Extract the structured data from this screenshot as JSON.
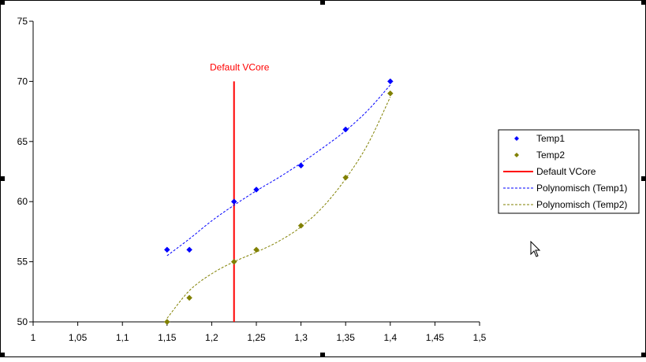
{
  "chart_data": {
    "type": "scatter",
    "title": "",
    "xlabel": "",
    "ylabel": "",
    "xlim": [
      1,
      1.5
    ],
    "ylim": [
      50,
      75
    ],
    "x_ticks": [
      1,
      1.05,
      1.1,
      1.15,
      1.2,
      1.25,
      1.3,
      1.35,
      1.4,
      1.45,
      1.5
    ],
    "x_tick_labels": [
      "1",
      "1,05",
      "1,1",
      "1,15",
      "1,2",
      "1,25",
      "1,3",
      "1,35",
      "1,4",
      "1,45",
      "1,5"
    ],
    "y_ticks": [
      50,
      55,
      60,
      65,
      70,
      75
    ],
    "y_tick_labels": [
      "50",
      "55",
      "60",
      "65",
      "70",
      "75"
    ],
    "grid": false,
    "legend_position": "right",
    "series": [
      {
        "name": "Temp1",
        "color": "#0000ff",
        "marker": "diamond",
        "points": [
          {
            "x": 1.15,
            "y": 56
          },
          {
            "x": 1.175,
            "y": 56
          },
          {
            "x": 1.225,
            "y": 60
          },
          {
            "x": 1.25,
            "y": 61
          },
          {
            "x": 1.3,
            "y": 63
          },
          {
            "x": 1.35,
            "y": 66
          },
          {
            "x": 1.4,
            "y": 70
          }
        ]
      },
      {
        "name": "Temp2",
        "color": "#808000",
        "marker": "diamond",
        "points": [
          {
            "x": 1.15,
            "y": 50
          },
          {
            "x": 1.175,
            "y": 52
          },
          {
            "x": 1.225,
            "y": 55
          },
          {
            "x": 1.25,
            "y": 56
          },
          {
            "x": 1.3,
            "y": 58
          },
          {
            "x": 1.35,
            "y": 62
          },
          {
            "x": 1.4,
            "y": 69
          }
        ]
      }
    ],
    "reference_line": {
      "name": "Default VCore",
      "label": "Default VCore",
      "color": "#ff0000",
      "x": 1.225,
      "y_from": 50,
      "y_to": 70
    },
    "trendlines": [
      {
        "name": "Polynomisch (Temp1)",
        "color": "#0000ff",
        "dash": "dashed",
        "points": [
          {
            "x": 1.15,
            "y": 55.5
          },
          {
            "x": 1.175,
            "y": 56.9
          },
          {
            "x": 1.2,
            "y": 58.4
          },
          {
            "x": 1.225,
            "y": 59.7
          },
          {
            "x": 1.25,
            "y": 60.9
          },
          {
            "x": 1.275,
            "y": 62
          },
          {
            "x": 1.3,
            "y": 63.2
          },
          {
            "x": 1.325,
            "y": 64.5
          },
          {
            "x": 1.35,
            "y": 65.9
          },
          {
            "x": 1.375,
            "y": 67.6
          },
          {
            "x": 1.4,
            "y": 69.7
          }
        ]
      },
      {
        "name": "Polynomisch (Temp2)",
        "color": "#808000",
        "dash": "dashed",
        "points": [
          {
            "x": 1.15,
            "y": 50.3
          },
          {
            "x": 1.175,
            "y": 52.6
          },
          {
            "x": 1.2,
            "y": 54
          },
          {
            "x": 1.225,
            "y": 55
          },
          {
            "x": 1.25,
            "y": 55.8
          },
          {
            "x": 1.275,
            "y": 56.7
          },
          {
            "x": 1.3,
            "y": 57.9
          },
          {
            "x": 1.325,
            "y": 59.6
          },
          {
            "x": 1.35,
            "y": 61.9
          },
          {
            "x": 1.375,
            "y": 64.8
          },
          {
            "x": 1.4,
            "y": 68.7
          }
        ]
      }
    ]
  },
  "legend": {
    "items": [
      {
        "label": "Temp1",
        "kind": "marker",
        "color": "#0000ff"
      },
      {
        "label": "Temp2",
        "kind": "marker",
        "color": "#808000"
      },
      {
        "label": "Default VCore",
        "kind": "solid",
        "color": "#ff0000"
      },
      {
        "label": "Polynomisch (Temp1)",
        "kind": "dashed",
        "color": "#0000ff"
      },
      {
        "label": "Polynomisch (Temp2)",
        "kind": "dashed",
        "color": "#808000"
      }
    ]
  },
  "icons": {
    "cursor": "mouse-pointer-icon"
  }
}
